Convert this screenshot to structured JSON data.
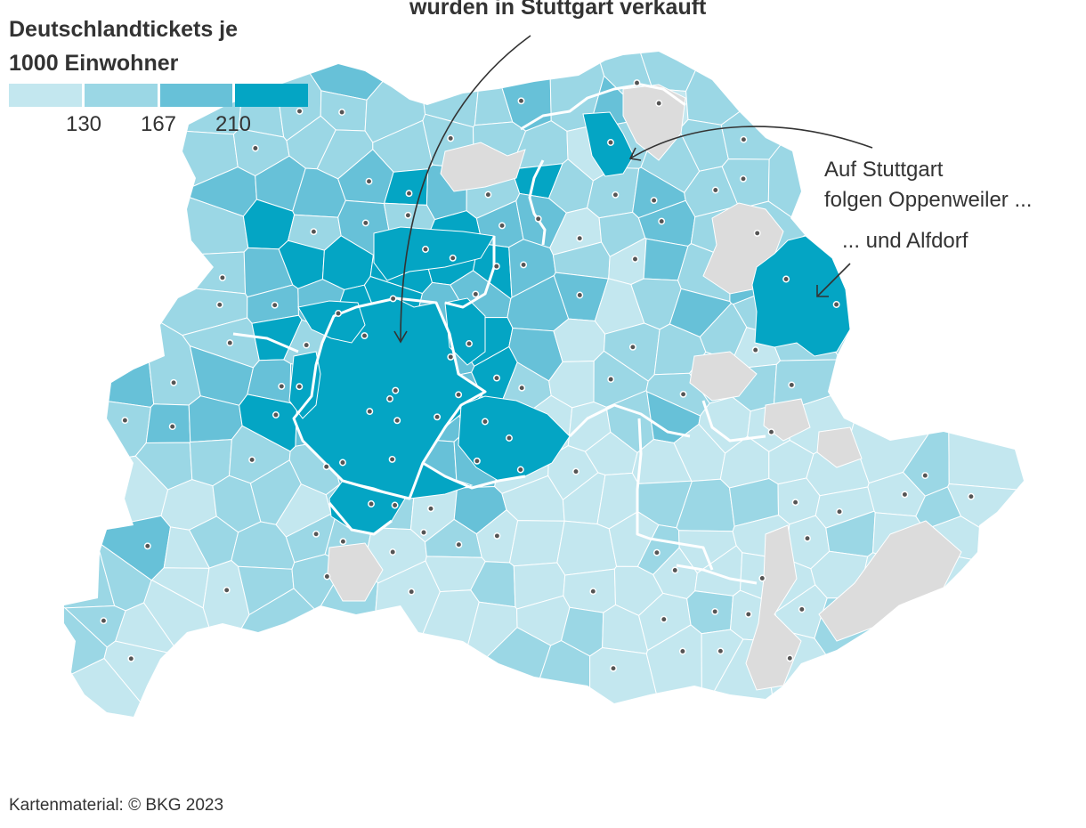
{
  "legend": {
    "title_line1": "Deutschlandtickets je",
    "title_line2": "1000 Einwohner",
    "thresholds": [
      "130",
      "167",
      "210"
    ],
    "colors": [
      "#c3e7ef",
      "#9bd7e5",
      "#67c1d8",
      "#04a5c4"
    ]
  },
  "colors": {
    "no_data": "#dcdcdc",
    "border": "#ffffff",
    "text": "#333333"
  },
  "headline": {
    "text": "wurden in Stuttgart verkauft"
  },
  "annotations": {
    "oppenweiler_line1": "Auf Stuttgart",
    "oppenweiler_line2": "folgen Oppenweiler ...",
    "alfdorf": "... und Alfdorf"
  },
  "map": {
    "region_count": 140,
    "highlighted": [
      "Stuttgart",
      "Oppenweiler",
      "Alfdorf"
    ]
  },
  "footer": {
    "source": "Kartenmaterial: © BKG 2023"
  }
}
